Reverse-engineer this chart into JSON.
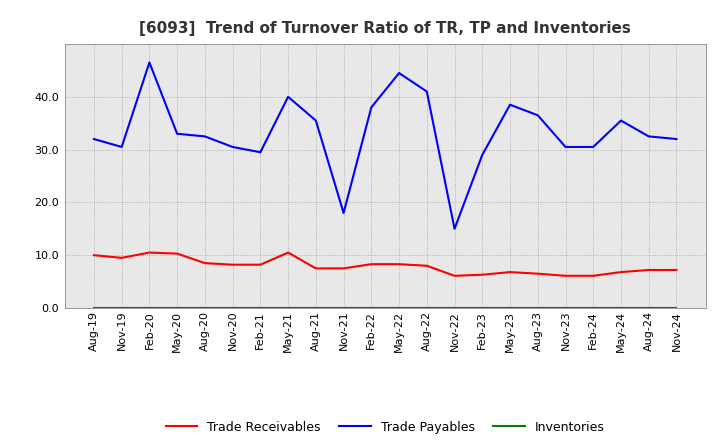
{
  "title": "[6093]  Trend of Turnover Ratio of TR, TP and Inventories",
  "x_labels": [
    "Aug-19",
    "Nov-19",
    "Feb-20",
    "May-20",
    "Aug-20",
    "Nov-20",
    "Feb-21",
    "May-21",
    "Aug-21",
    "Nov-21",
    "Feb-22",
    "May-22",
    "Aug-22",
    "Nov-22",
    "Feb-23",
    "May-23",
    "Aug-23",
    "Nov-23",
    "Feb-24",
    "May-24",
    "Aug-24",
    "Nov-24"
  ],
  "trade_receivables": [
    10.0,
    9.5,
    10.5,
    10.3,
    8.5,
    8.2,
    8.2,
    10.5,
    7.5,
    7.5,
    8.3,
    8.3,
    8.0,
    6.1,
    6.3,
    6.8,
    6.5,
    6.1,
    6.1,
    6.8,
    7.2,
    7.2
  ],
  "trade_payables": [
    32.0,
    30.5,
    46.5,
    33.0,
    32.5,
    30.5,
    29.5,
    40.0,
    35.5,
    18.0,
    38.0,
    44.5,
    41.0,
    15.0,
    29.0,
    38.5,
    36.5,
    30.5,
    30.5,
    35.5,
    32.5,
    32.0
  ],
  "inventories": [
    0.0,
    0.0,
    0.0,
    0.0,
    0.0,
    0.0,
    0.0,
    0.0,
    0.0,
    0.0,
    0.0,
    0.0,
    0.0,
    0.0,
    0.0,
    0.0,
    0.0,
    0.0,
    0.0,
    0.0,
    0.0,
    0.0
  ],
  "tr_color": "#ff0000",
  "tp_color": "#0000ff",
  "inv_color": "#008000",
  "ylim": [
    0,
    50
  ],
  "yticks": [
    0.0,
    10.0,
    20.0,
    30.0,
    40.0
  ],
  "background_color": "#ffffff",
  "plot_bg_color": "#e8e8e8",
  "grid_color": "#999999",
  "spine_color": "#888888",
  "title_fontsize": 11,
  "tick_fontsize": 8,
  "legend_fontsize": 9,
  "legend_labels": [
    "Trade Receivables",
    "Trade Payables",
    "Inventories"
  ]
}
